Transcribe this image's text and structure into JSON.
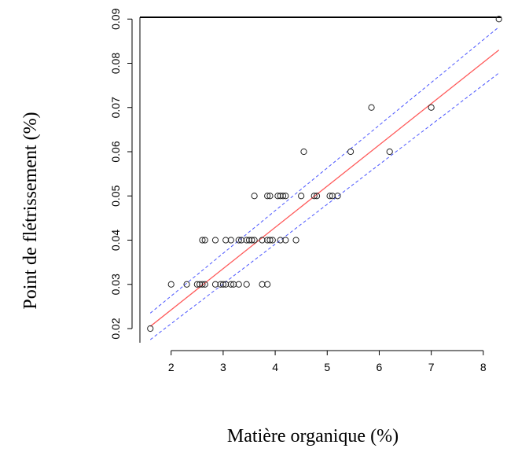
{
  "chart_data": {
    "type": "scatter",
    "xlabel": "Matière organique (%)",
    "ylabel": "Point de flétrissement (%)",
    "xlim": [
      1.4,
      8.35
    ],
    "ylim": [
      0.0168,
      0.0904
    ],
    "x_ticks": [
      "2",
      "3",
      "4",
      "5",
      "6",
      "7",
      "8"
    ],
    "y_ticks": [
      "0.02",
      "0.03",
      "0.04",
      "0.05",
      "0.06",
      "0.07",
      "0.08",
      "0.09"
    ],
    "grid": false,
    "legend": "none",
    "points": [
      {
        "x": 1.6,
        "y": 0.02
      },
      {
        "x": 2.0,
        "y": 0.03
      },
      {
        "x": 2.3,
        "y": 0.03
      },
      {
        "x": 2.5,
        "y": 0.03
      },
      {
        "x": 2.55,
        "y": 0.03
      },
      {
        "x": 2.6,
        "y": 0.03
      },
      {
        "x": 2.65,
        "y": 0.03
      },
      {
        "x": 2.85,
        "y": 0.03
      },
      {
        "x": 2.95,
        "y": 0.03
      },
      {
        "x": 3.0,
        "y": 0.03
      },
      {
        "x": 3.05,
        "y": 0.03
      },
      {
        "x": 3.15,
        "y": 0.03
      },
      {
        "x": 3.2,
        "y": 0.03
      },
      {
        "x": 3.3,
        "y": 0.03
      },
      {
        "x": 3.45,
        "y": 0.03
      },
      {
        "x": 3.75,
        "y": 0.03
      },
      {
        "x": 3.85,
        "y": 0.03
      },
      {
        "x": 2.6,
        "y": 0.04
      },
      {
        "x": 2.65,
        "y": 0.04
      },
      {
        "x": 2.85,
        "y": 0.04
      },
      {
        "x": 3.05,
        "y": 0.04
      },
      {
        "x": 3.15,
        "y": 0.04
      },
      {
        "x": 3.3,
        "y": 0.04
      },
      {
        "x": 3.35,
        "y": 0.04
      },
      {
        "x": 3.45,
        "y": 0.04
      },
      {
        "x": 3.5,
        "y": 0.04
      },
      {
        "x": 3.55,
        "y": 0.04
      },
      {
        "x": 3.6,
        "y": 0.04
      },
      {
        "x": 3.75,
        "y": 0.04
      },
      {
        "x": 3.85,
        "y": 0.04
      },
      {
        "x": 3.9,
        "y": 0.04
      },
      {
        "x": 3.95,
        "y": 0.04
      },
      {
        "x": 4.1,
        "y": 0.04
      },
      {
        "x": 4.2,
        "y": 0.04
      },
      {
        "x": 4.4,
        "y": 0.04
      },
      {
        "x": 3.6,
        "y": 0.05
      },
      {
        "x": 3.85,
        "y": 0.05
      },
      {
        "x": 3.9,
        "y": 0.05
      },
      {
        "x": 4.05,
        "y": 0.05
      },
      {
        "x": 4.1,
        "y": 0.05
      },
      {
        "x": 4.15,
        "y": 0.05
      },
      {
        "x": 4.2,
        "y": 0.05
      },
      {
        "x": 4.5,
        "y": 0.05
      },
      {
        "x": 4.75,
        "y": 0.05
      },
      {
        "x": 4.8,
        "y": 0.05
      },
      {
        "x": 5.05,
        "y": 0.05
      },
      {
        "x": 5.1,
        "y": 0.05
      },
      {
        "x": 5.2,
        "y": 0.05
      },
      {
        "x": 4.55,
        "y": 0.06
      },
      {
        "x": 5.45,
        "y": 0.06
      },
      {
        "x": 6.2,
        "y": 0.06
      },
      {
        "x": 5.85,
        "y": 0.07
      },
      {
        "x": 7.0,
        "y": 0.07
      },
      {
        "x": 8.3,
        "y": 0.09
      }
    ],
    "fit_line": {
      "x": [
        1.6,
        8.3
      ],
      "y": [
        0.0205,
        0.083
      ],
      "color": "#ff5a5a"
    },
    "ci_lower": {
      "x": [
        1.6,
        8.3
      ],
      "y": [
        0.0175,
        0.0778
      ],
      "color": "#4b56ff"
    },
    "ci_upper": {
      "x": [
        1.6,
        8.3
      ],
      "y": [
        0.0235,
        0.0882
      ],
      "color": "#4b56ff"
    }
  }
}
